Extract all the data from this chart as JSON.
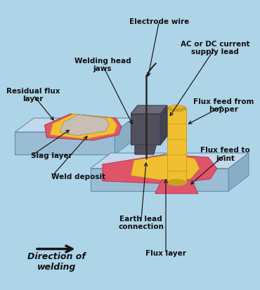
{
  "bg": "#aed4e8",
  "plate_top": "#c2d9eb",
  "plate_front": "#9bbdd4",
  "plate_side": "#88adc5",
  "plate_edge": "#6090b0",
  "weld_pink": "#e0546a",
  "flux_yellow": "#f0c030",
  "slag_gray": "#c8beb4",
  "head_dark1": "#50505e",
  "head_dark2": "#3e3e4a",
  "head_light": "#6a6a7a",
  "wire_color": "#282828",
  "hopper_yel": "#f0c030",
  "hopper_dark": "#c8a020",
  "arrow_color": "#151515",
  "text_color": "#111111",
  "labels": {
    "electrode_wire": "Electrode wire",
    "welding_head_jaws": "Welding head\njaws",
    "ac_dc_current": "AC or DC current\nsupply lead",
    "residual_flux_layer": "Residual flux\nlayer",
    "flux_feed_from_hopper": "Flux feed from\nhopper",
    "slag_layer": "Slag layer",
    "flux_feed_to_joint": "Flux feed to\njoint",
    "weld_deposit": "Weld deposit",
    "earth_lead_connection": "Earth lead\nconnection",
    "flux_layer": "Flux layer",
    "direction_of_welding": "Direction of\nwelding"
  }
}
